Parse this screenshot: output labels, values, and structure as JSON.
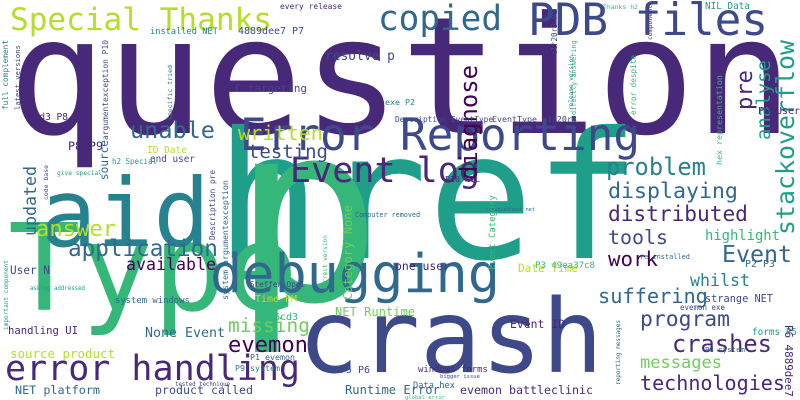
{
  "words": [
    "question",
    "href",
    "p",
    "crash",
    "Type",
    "aid",
    "debugging",
    "Error Reporting",
    "error handling",
    "PDB files",
    "Special Thanks",
    "copied",
    "Event log",
    "diagnose",
    "analyse",
    "stackoverflow",
    "pre",
    "written",
    "unable",
    "testing",
    "problem",
    "displaying",
    "distributed",
    "tools",
    "work",
    "highlight",
    "Event",
    "whilst",
    "suffering",
    "program",
    "crashes",
    "messages",
    "technologies",
    "application",
    "answer",
    "available",
    "updated",
    "missing",
    "evemon",
    "None Event",
    "source product",
    "handling UI",
    "NET platform",
    "product called",
    "Runtime Error",
    "evemon battleclinic",
    "NET Runtime",
    "Event ID",
    "one user",
    "Date Time",
    "windows forms",
    "Data hex",
    "P5 P6",
    "PM User",
    "C targeting",
    "resolve p",
    "Description EventType",
    "EventType clr20r3",
    "exe P2",
    "installed NET",
    "4889dee7 P7",
    "every release",
    "Thanks h2",
    "NIL Data",
    "ID Date",
    "end user",
    "Time PM",
    "P7 6cd3",
    "P9 system",
    "P1 evemon",
    "strange NET",
    "P4 system",
    "forms P5",
    "P2 P3",
    "re installed",
    "P10 NIL",
    "Computer removed",
    "Steffen Opel",
    "tested technique",
    "global error",
    "P3 49ea37c8",
    "troubleshoot net",
    "6cd3 P8",
    "P8 P9",
    "User N",
    "system windows",
    "evemon exe",
    "bigger issue",
    "Category None",
    "Event Category",
    "hex representation",
    "error despite",
    "directly answering",
    "release version",
    "clr20r3 P1",
    "specific tried",
    "argumentexception P10",
    "latest versions",
    "full complement",
    "system argumentexception",
    "Description pre",
    "source",
    "correct version",
    "component",
    "important component",
    "give special",
    "h2 Special",
    "code base",
    "asking addressed",
    "reporting messages",
    "P6 4889dee7"
  ]
}
